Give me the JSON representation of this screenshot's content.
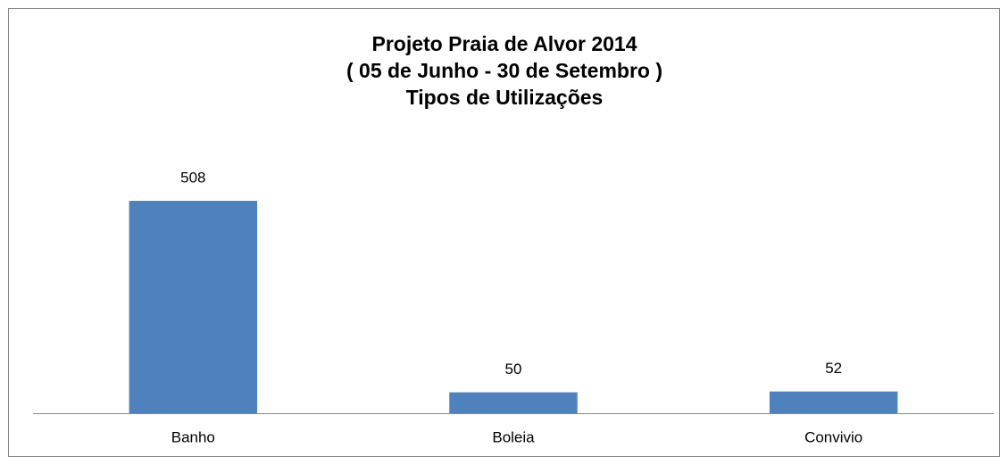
{
  "chart_data": {
    "type": "bar",
    "title": [
      "Projeto Praia de Alvor 2014",
      "( 05 de Junho - 30 de Setembro )",
      "Tipos de Utilizações"
    ],
    "categories": [
      "Banho",
      "Boleia",
      "Convivio"
    ],
    "values": [
      508,
      50,
      52
    ],
    "color": "#4f81bd"
  }
}
